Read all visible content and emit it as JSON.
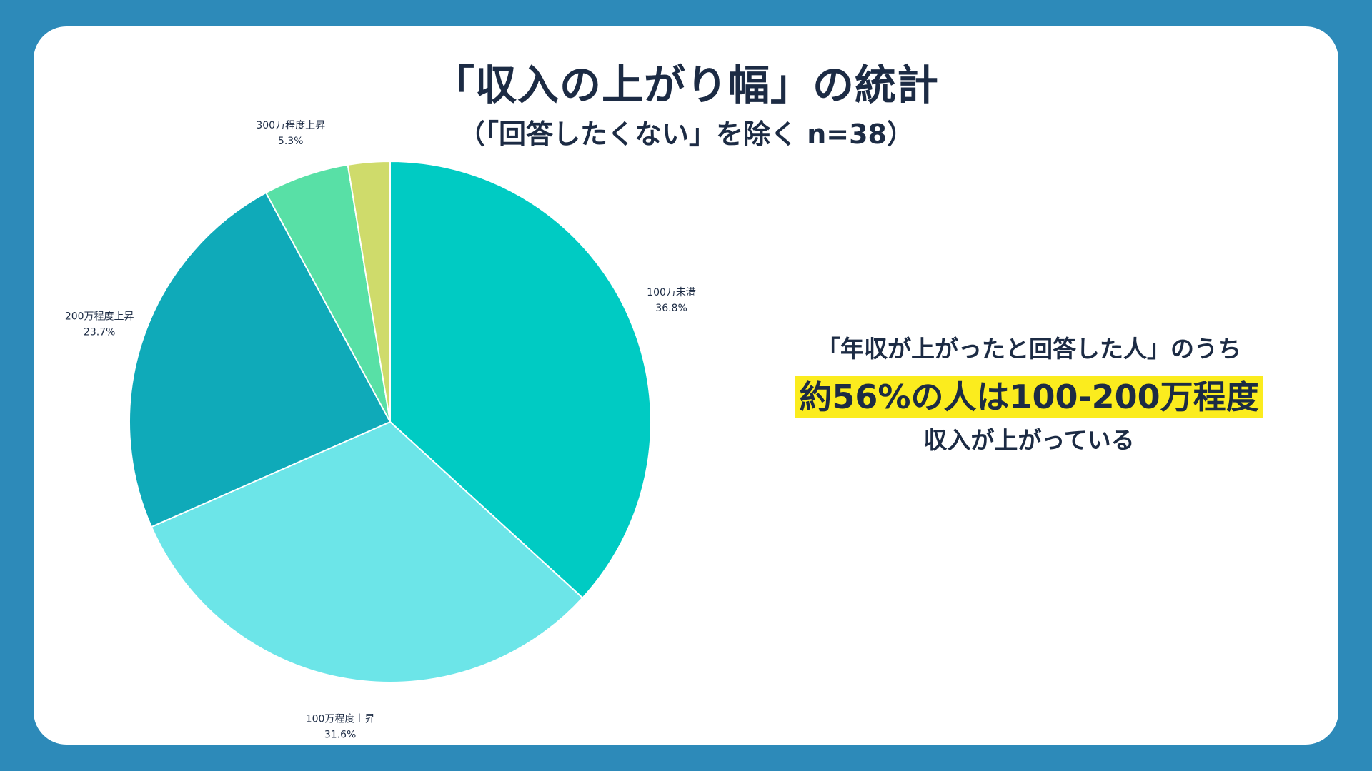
{
  "title": "「収入の上がり幅」の統計",
  "subtitle": "（｢回答したくない」を除く n=38）",
  "callout": {
    "line1": "「年収が上がったと回答した人」のうち",
    "line2": "約56%の人は100-200万程度",
    "line3": "収入が上がっている"
  },
  "colors": {
    "background": "#2d8ab9",
    "card": "#ffffff",
    "text": "#1c2b44",
    "highlight": "#fbec1e"
  },
  "chart_data": {
    "type": "pie",
    "title": "「収入の上がり幅」の統計",
    "subtitle": "（｢回答したくない」を除く n=38）",
    "start_angle_deg": 0,
    "direction": "clockwise",
    "slices": [
      {
        "label": "100万未満",
        "value": 36.8,
        "value_label": "36.8%",
        "color": "#00cbc3",
        "show_label": true
      },
      {
        "label": "100万程度上昇",
        "value": 31.6,
        "value_label": "31.6%",
        "color": "#6ce5e8",
        "show_label": true
      },
      {
        "label": "200万程度上昇",
        "value": 23.7,
        "value_label": "23.7%",
        "color": "#0faab9",
        "show_label": true
      },
      {
        "label": "300万程度上昇",
        "value": 5.3,
        "value_label": "5.3%",
        "color": "#58e0a6",
        "show_label": true
      },
      {
        "label": "",
        "value": 2.6,
        "value_label": "",
        "color": "#cfdb6b",
        "show_label": false
      }
    ]
  }
}
